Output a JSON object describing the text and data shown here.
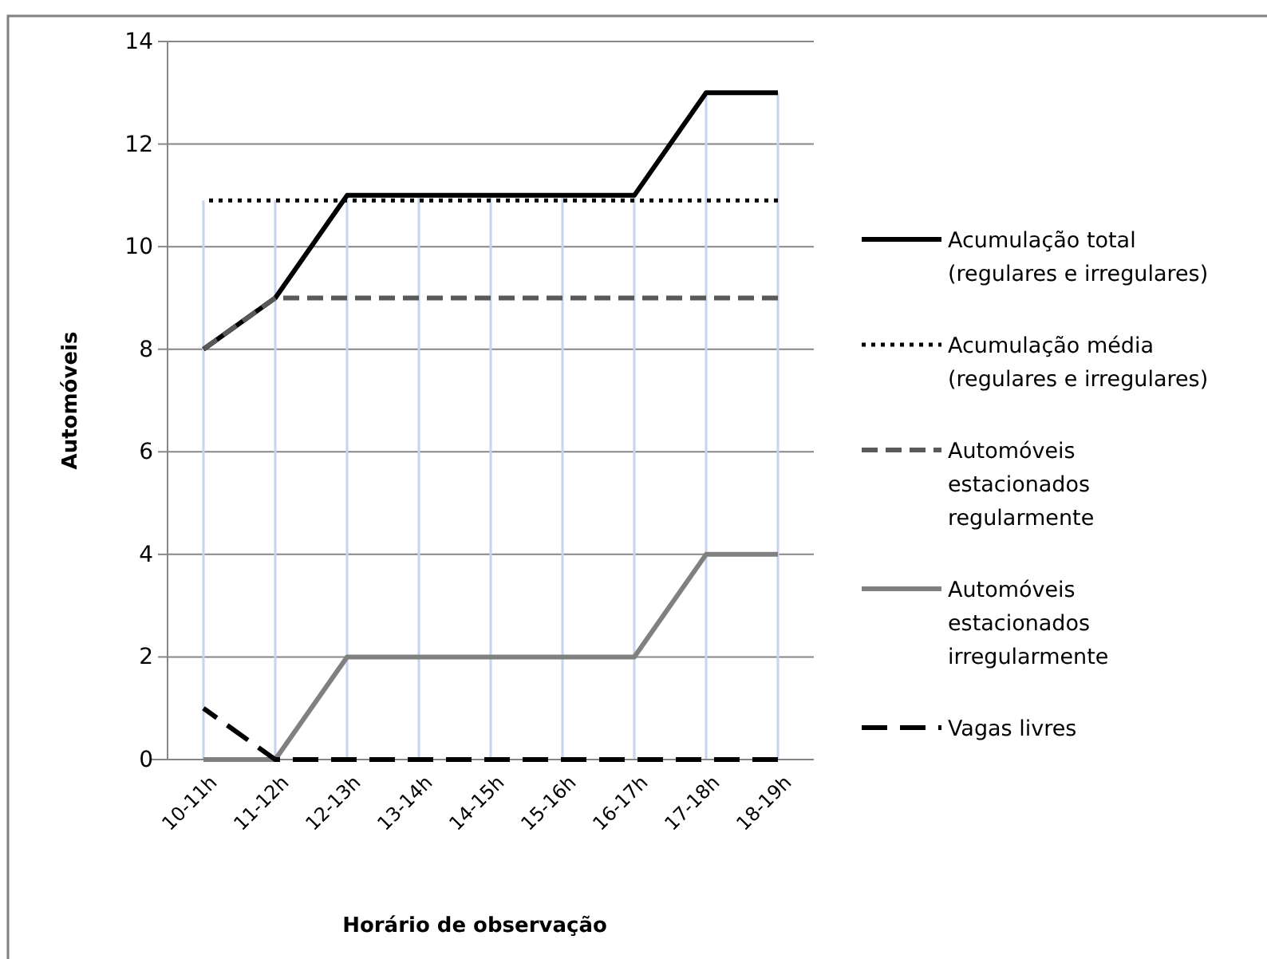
{
  "chart_data": {
    "type": "line",
    "xlabel": "Horário de observação",
    "ylabel": "Automóveis",
    "categories": [
      "10-11h",
      "11-12h",
      "12-13h",
      "13-14h",
      "14-15h",
      "15-16h",
      "16-17h",
      "17-18h",
      "18-19h"
    ],
    "ylim": [
      0,
      14
    ],
    "yticks": [
      0,
      2,
      4,
      6,
      8,
      10,
      12,
      14
    ],
    "grid": true,
    "legend": "right",
    "marker": "none",
    "series": [
      {
        "name": "Acumulação total (regulares e irregulares)",
        "color": "#000000",
        "line_style": "solid",
        "values": [
          8,
          9,
          11,
          11,
          11,
          11,
          11,
          13,
          13
        ]
      },
      {
        "name": "Acumulação média (regulares e irregulares)",
        "color": "#000000",
        "line_style": "dotted",
        "values": [
          10.9,
          10.9,
          10.9,
          10.9,
          10.9,
          10.9,
          10.9,
          10.9,
          10.9
        ]
      },
      {
        "name": "Automóveis estacionados regularmente",
        "color": "#595959",
        "line_style": "dashed",
        "values": [
          8,
          9,
          9,
          9,
          9,
          9,
          9,
          9,
          9
        ]
      },
      {
        "name": "Automóveis estacionados irregularmente",
        "color": "#808080",
        "line_style": "solid",
        "values": [
          0,
          0,
          2,
          2,
          2,
          2,
          2,
          4,
          4
        ]
      },
      {
        "name": "Vagas livres",
        "color": "#000000",
        "line_style": "dashed",
        "values": [
          1,
          0,
          0,
          0,
          0,
          0,
          0,
          0,
          0
        ]
      }
    ]
  }
}
